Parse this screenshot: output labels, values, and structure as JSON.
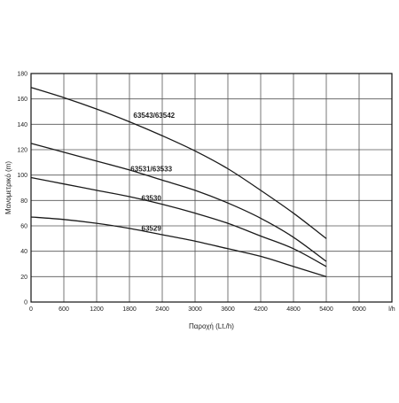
{
  "chart_data": {
    "type": "line",
    "title": "",
    "xlabel": "Παροχή (Lt./h)",
    "ylabel": "Μανομετρικό  (m)",
    "x_unit_label": "l/h",
    "xlim": [
      0,
      6600
    ],
    "ylim": [
      0,
      180
    ],
    "x_ticks": [
      0,
      600,
      1200,
      1800,
      2400,
      3000,
      3600,
      4200,
      4800,
      5400,
      6000
    ],
    "y_ticks": [
      0,
      20,
      40,
      60,
      80,
      100,
      120,
      140,
      160,
      180
    ],
    "grid": true,
    "legend": "inline labels",
    "line_color": "#1a1a1a",
    "series": [
      {
        "name": "63543/63542",
        "x": [
          0,
          600,
          1200,
          1800,
          2400,
          3000,
          3600,
          4200,
          4800,
          5400
        ],
        "y": [
          169,
          161,
          152,
          142,
          131,
          119,
          105,
          88,
          70,
          50
        ]
      },
      {
        "name": "63531/63533",
        "x": [
          0,
          600,
          1200,
          1800,
          2400,
          3000,
          3600,
          4200,
          4800,
          5400
        ],
        "y": [
          125,
          118,
          111,
          104,
          96,
          88,
          78,
          66,
          51,
          32
        ]
      },
      {
        "name": "63530",
        "x": [
          0,
          600,
          1200,
          1800,
          2400,
          3000,
          3600,
          4200,
          4800,
          5400
        ],
        "y": [
          98,
          93,
          88,
          83,
          77,
          70,
          62,
          52,
          42,
          28
        ]
      },
      {
        "name": "63529",
        "x": [
          0,
          600,
          1200,
          1800,
          2400,
          3000,
          3600,
          4200,
          4800,
          5400
        ],
        "y": [
          67,
          65,
          62,
          58,
          53,
          48,
          42,
          36,
          28,
          20
        ]
      }
    ]
  }
}
